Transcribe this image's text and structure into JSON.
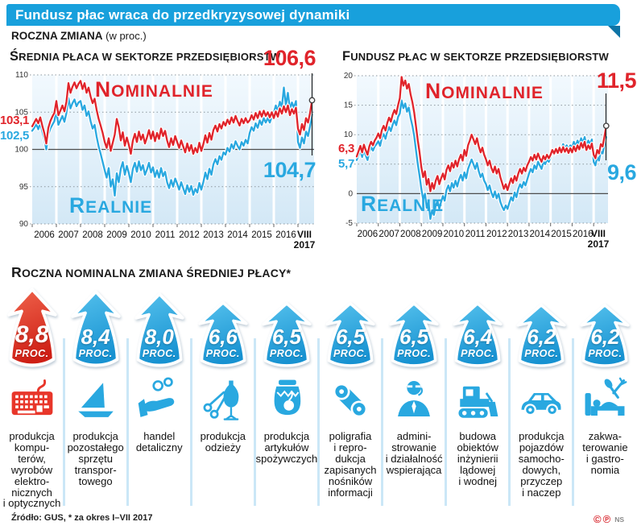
{
  "header": {
    "title": "Fundusz płac wraca do przedkryzysowej dynamiki",
    "subtitle_bold": "ROCZNA ZMIANA",
    "subtitle_note": "(w proc.)"
  },
  "colors": {
    "ribbon_blue": "#18A0DC",
    "ribbon_fold": "#0E74A6",
    "red": "#E0242B",
    "blue": "#29A8E0",
    "arrow_red_top": "#F0644C",
    "arrow_red_bottom": "#CE1F15",
    "arrow_blue_top": "#55C1ED",
    "arrow_blue_bottom": "#1792D1",
    "plot_bg_top": "#F2F9FE",
    "plot_bg_bottom": "#D3E8F6"
  },
  "chart_data": [
    {
      "type": "line",
      "title": "ŚREDNIA PŁACA W SEKTORZE PRZEDSIĘBIORSTW",
      "x_start_year": 2006,
      "x_label_years": [
        "2006",
        "2007",
        "2008",
        "2009",
        "2010",
        "2011",
        "2012",
        "2013",
        "2014",
        "2015",
        "2016"
      ],
      "x_end_label": [
        "VIII",
        "2017"
      ],
      "ylim": [
        90,
        110
      ],
      "baseline": 100,
      "yticks": [
        {
          "v": 110,
          "label": "110"
        },
        {
          "v": 105,
          "label": "105"
        },
        {
          "v": 100,
          "label": "100"
        },
        {
          "v": 95,
          "label": "95"
        },
        {
          "v": 90,
          "label": "90"
        }
      ],
      "series": [
        {
          "name": "NOMINALNIE",
          "color_key": "red",
          "start_label": "103,1",
          "end_label": "106,6",
          "values": [
            103.1,
            103.6,
            104.1,
            103.5,
            104.3,
            103.2,
            102.2,
            100.8,
            102.9,
            103.8,
            104.4,
            104.9,
            106.5,
            104.6,
            105.2,
            105.9,
            105.1,
            106.4,
            108.9,
            107.6,
            108.4,
            109.0,
            108.2,
            108.8,
            109.2,
            108.1,
            108.9,
            107.6,
            108.3,
            107.1,
            106.2,
            106.8,
            105.3,
            104.1,
            103.2,
            102.2,
            101.0,
            100.2,
            101.5,
            99.8,
            100.9,
            102.0,
            104.1,
            103.0,
            101.2,
            102.3,
            100.5,
            101.6,
            100.6,
            99.4,
            101.2,
            102.1,
            101.0,
            102.4,
            101.3,
            102.0,
            100.8,
            101.6,
            102.6,
            101.4,
            102.4,
            101.1,
            102.2,
            101.4,
            102.8,
            101.8,
            102.5,
            101.2,
            100.3,
            101.5,
            100.6,
            101.8,
            101.0,
            100.2,
            101.2,
            100.4,
            99.6,
            100.8,
            99.8,
            100.6,
            99.4,
            100.2,
            99.6,
            100.9,
            99.8,
            100.7,
            101.9,
            100.9,
            102.2,
            101.3,
            102.6,
            103.2,
            102.4,
            103.4,
            102.8,
            103.7,
            103.2,
            104.0,
            103.4,
            104.3,
            103.6,
            104.5,
            103.8,
            103.2,
            104.1,
            103.5,
            104.2,
            103.6,
            103.9,
            104.6,
            104.0,
            104.9,
            104.2,
            105.1,
            104.4,
            105.2,
            104.5,
            105.0,
            104.3,
            105.0,
            104.2,
            105.1,
            104.4,
            105.5,
            104.8,
            105.8,
            105.0,
            105.9,
            104.6,
            105.4,
            104.8,
            105.6,
            102.8,
            102.0,
            103.4,
            102.6,
            104.2,
            103.6,
            104.9,
            106.6
          ]
        },
        {
          "name": "REALNIE",
          "color_key": "blue",
          "start_label": "102,5",
          "end_label": "104,7",
          "values": [
            102.5,
            102.9,
            103.4,
            102.7,
            103.5,
            102.4,
            101.4,
            100.0,
            102.0,
            102.8,
            103.3,
            103.8,
            105.2,
            103.3,
            103.9,
            104.5,
            103.7,
            104.9,
            106.9,
            105.5,
            106.2,
            106.7,
            105.8,
            106.3,
            106.5,
            105.3,
            105.9,
            104.5,
            105.1,
            103.8,
            102.8,
            103.3,
            101.7,
            100.4,
            99.4,
            98.3,
            97.2,
            96.2,
            97.5,
            95.0,
            96.0,
            93.8,
            96.8,
            95.6,
            97.4,
            98.3,
            96.6,
            97.8,
            96.8,
            95.6,
            97.4,
            98.2,
            97.0,
            98.4,
            97.2,
            97.9,
            96.6,
            97.3,
            98.2,
            96.9,
            97.6,
            96.3,
            97.2,
            96.2,
            97.5,
            96.4,
            97.0,
            95.6,
            94.8,
            95.9,
            95.0,
            96.1,
            95.4,
            94.6,
            95.6,
            94.8,
            94.0,
            95.2,
            94.3,
            95.1,
            93.9,
            94.7,
            94.2,
            95.5,
            94.6,
            95.6,
            96.9,
            96.0,
            97.4,
            96.6,
            98.0,
            98.7,
            98.0,
            99.1,
            98.6,
            99.6,
            99.3,
            100.2,
            99.7,
            100.7,
            100.1,
            101.1,
            100.5,
            100.0,
            101.0,
            100.5,
            101.3,
            100.8,
            102.2,
            103.0,
            102.5,
            103.5,
            102.9,
            103.9,
            103.3,
            104.2,
            103.6,
            104.2,
            103.6,
            104.4,
            104.9,
            105.9,
            105.2,
            106.4,
            105.7,
            108.3,
            105.9,
            107.6,
            105.4,
            106.3,
            105.6,
            106.5,
            101.0,
            100.2,
            101.6,
            100.8,
            102.4,
            101.8,
            103.1,
            104.7
          ]
        }
      ]
    },
    {
      "type": "line",
      "title": "FUNDUSZ PŁAC W SEKTORZE PRZEDSIĘBIORSTW",
      "x_start_year": 2006,
      "x_label_years": [
        "2006",
        "2007",
        "2008",
        "2009",
        "2010",
        "2011",
        "2012",
        "2013",
        "2014",
        "2015",
        "2016"
      ],
      "x_end_label": [
        "VIII",
        "2017"
      ],
      "ylim": [
        -5,
        20
      ],
      "baseline": 0,
      "yticks": [
        {
          "v": 20,
          "label": "20"
        },
        {
          "v": 15,
          "label": "15"
        },
        {
          "v": 10,
          "label": "10"
        },
        {
          "v": 5,
          "label": ""
        },
        {
          "v": 0,
          "label": "0"
        },
        {
          "v": -5,
          "label": "-5"
        }
      ],
      "series": [
        {
          "name": "NOMINALNIE",
          "color_key": "red",
          "start_label": "6,3",
          "end_label": "11,5",
          "values": [
            6.3,
            7.2,
            8.1,
            7.0,
            8.3,
            7.4,
            6.6,
            8.0,
            8.8,
            8.2,
            9.0,
            9.5,
            10.2,
            9.4,
            10.8,
            11.5,
            10.7,
            12.0,
            12.9,
            12.2,
            13.4,
            14.2,
            13.5,
            15.0,
            16.2,
            19.8,
            18.3,
            19.2,
            17.8,
            18.6,
            16.8,
            15.5,
            13.8,
            11.5,
            9.0,
            7.0,
            4.5,
            2.8,
            3.8,
            1.5,
            2.5,
            0.4,
            1.8,
            0.8,
            2.2,
            3.0,
            1.6,
            2.6,
            3.4,
            2.4,
            4.0,
            4.8,
            3.8,
            5.2,
            4.4,
            5.6,
            4.6,
            5.8,
            6.6,
            5.6,
            7.4,
            6.4,
            8.2,
            9.0,
            10.0,
            9.2,
            8.4,
            9.4,
            8.0,
            7.0,
            7.8,
            6.6,
            5.8,
            4.8,
            5.6,
            4.4,
            3.6,
            4.6,
            3.4,
            4.2,
            2.8,
            1.8,
            0.8,
            1.6,
            0.6,
            1.6,
            2.6,
            1.8,
            3.0,
            2.2,
            3.4,
            4.2,
            3.4,
            4.4,
            3.8,
            4.8,
            5.4,
            6.2,
            5.6,
            6.6,
            5.8,
            6.8,
            6.0,
            5.4,
            6.4,
            5.8,
            6.6,
            6.0,
            6.6,
            7.4,
            6.8,
            7.6,
            6.9,
            7.8,
            7.0,
            7.9,
            7.1,
            7.7,
            6.9,
            7.7,
            7.0,
            8.0,
            7.2,
            8.2,
            7.5,
            8.6,
            7.8,
            8.8,
            7.4,
            8.2,
            7.6,
            8.5,
            6.6,
            6.0,
            7.4,
            6.8,
            8.4,
            8.0,
            9.6,
            11.5
          ]
        },
        {
          "name": "REALNIE",
          "color_key": "blue",
          "start_label": "5,7",
          "end_label": "9,6",
          "values": [
            5.7,
            6.5,
            7.4,
            6.2,
            7.5,
            6.5,
            5.7,
            7.1,
            7.9,
            7.3,
            8.0,
            8.4,
            8.9,
            8.1,
            9.5,
            10.1,
            9.3,
            10.5,
            11.3,
            10.6,
            11.7,
            12.4,
            11.6,
            13.0,
            13.6,
            15.8,
            14.5,
            15.3,
            13.9,
            14.6,
            12.8,
            11.5,
            9.8,
            7.4,
            5.0,
            3.0,
            0.8,
            -1.0,
            0.0,
            -2.4,
            -1.4,
            -4.3,
            -2.8,
            -3.6,
            -2.0,
            -1.2,
            -2.6,
            -1.4,
            -0.4,
            -1.2,
            0.6,
            1.4,
            0.4,
            1.8,
            1.0,
            2.2,
            1.2,
            2.4,
            3.2,
            2.2,
            3.6,
            2.6,
            4.2,
            5.0,
            5.8,
            5.0,
            4.2,
            5.2,
            3.8,
            2.8,
            3.4,
            2.2,
            1.6,
            0.6,
            1.4,
            0.2,
            -0.6,
            0.4,
            -0.8,
            0.0,
            -1.4,
            -2.2,
            -2.8,
            -2.0,
            -2.6,
            -1.6,
            -0.6,
            -1.2,
            0.2,
            -0.6,
            0.8,
            1.6,
            1.0,
            2.0,
            1.4,
            2.4,
            3.4,
            4.2,
            3.6,
            4.8,
            4.2,
            5.4,
            4.8,
            4.2,
            5.4,
            5.0,
            5.8,
            5.4,
            6.2,
            7.2,
            6.6,
            7.6,
            7.0,
            8.0,
            7.4,
            8.4,
            7.6,
            8.2,
            7.4,
            8.2,
            7.8,
            8.8,
            8.0,
            9.0,
            8.3,
            9.4,
            8.6,
            9.6,
            8.2,
            9.0,
            8.4,
            9.2,
            5.4,
            4.8,
            6.2,
            5.6,
            7.2,
            6.8,
            8.2,
            9.6
          ]
        }
      ]
    }
  ],
  "sectors": {
    "heading": "ROCZNA NOMINALNA ZMIANA ŚREDNIEJ PŁACY*",
    "unit_label": "PROC.",
    "items": [
      {
        "value_label": "8,8",
        "value": 8.8,
        "color_key": "red",
        "icon": "keyboard-icon",
        "label": "produkcja\nkompu-\nterów,\nwyrobów\nelektro-\nnicznych\ni optycznych"
      },
      {
        "value_label": "8,4",
        "value": 8.4,
        "color_key": "blue",
        "icon": "sailboat-icon",
        "label": "produkcja\npozostałego\nsprzętu\ntranspor-\ntowego"
      },
      {
        "value_label": "8,0",
        "value": 8.0,
        "color_key": "blue",
        "icon": "hand-coins-icon",
        "label": "handel\ndetaliczny"
      },
      {
        "value_label": "6,6",
        "value": 6.6,
        "color_key": "blue",
        "icon": "tailor-scissors-icon",
        "label": "produkcja\nodzieży"
      },
      {
        "value_label": "6,5",
        "value": 6.5,
        "color_key": "blue",
        "icon": "jam-jar-icon",
        "label": "produkcja\nartykułów\nspożywczych"
      },
      {
        "value_label": "6,5",
        "value": 6.5,
        "color_key": "blue",
        "icon": "printing-rollers-icon",
        "label": "poligrafia\ni repro-\ndukcja\nzapisanych\nnośników\ninformacji"
      },
      {
        "value_label": "6,5",
        "value": 6.5,
        "color_key": "blue",
        "icon": "office-worker-icon",
        "label": "admini-\nstrowanie\ni działalność\nwspierająca"
      },
      {
        "value_label": "6,4",
        "value": 6.4,
        "color_key": "blue",
        "icon": "bulldozer-icon",
        "label": "budowa\nobiektów\ninżynierii\nlądowej\ni wodnej"
      },
      {
        "value_label": "6,2",
        "value": 6.2,
        "color_key": "blue",
        "icon": "car-icon",
        "label": "produkcja\npojazdów\nsamocho-\ndowych,\nprzyczep\ni naczep"
      },
      {
        "value_label": "6,2",
        "value": 6.2,
        "color_key": "blue",
        "icon": "bed-cutlery-icon",
        "label": "zakwa-\nterowanie\ni gastro-\nnomia"
      }
    ]
  },
  "footer": {
    "source": "Źródło: GUS, * za okres I–VII 2017",
    "rights": [
      "©",
      "℗"
    ],
    "agency": "NS"
  }
}
